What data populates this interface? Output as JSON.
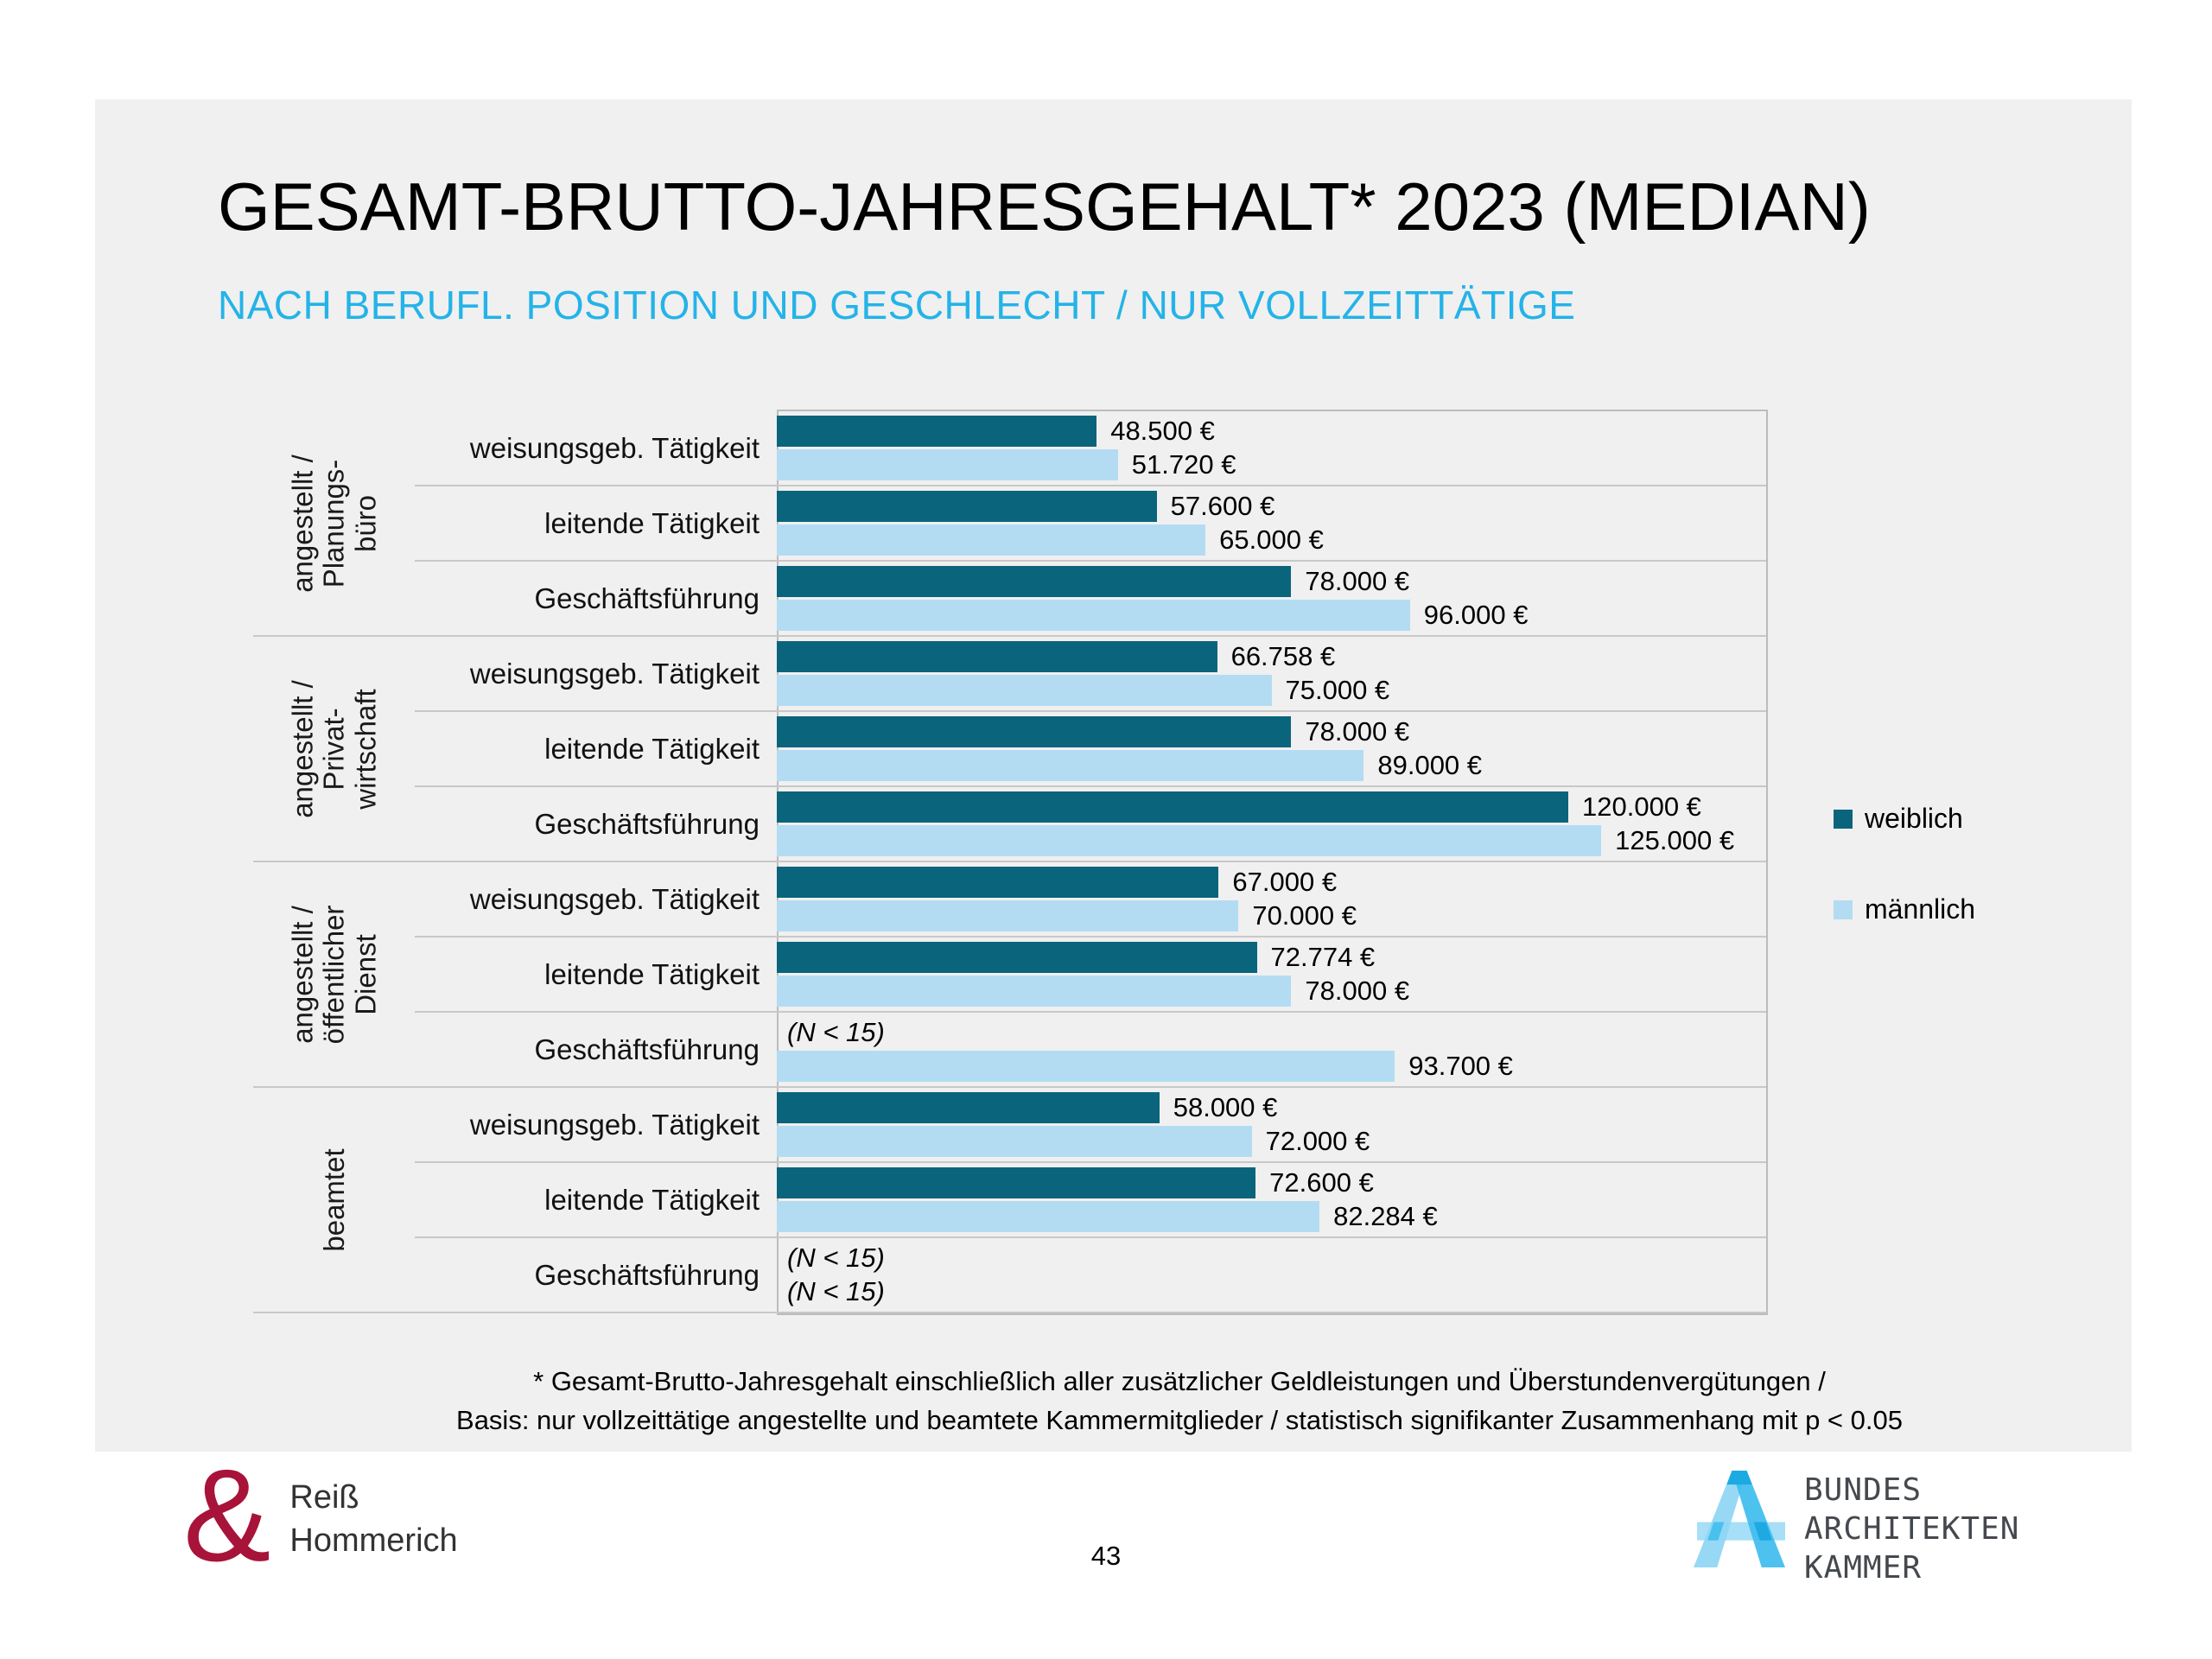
{
  "slide": {
    "title": "GESAMT-BRUTTO-JAHRESGEHALT* 2023 (MEDIAN)",
    "subtitle": "NACH BERUFL. POSITION UND GESCHLECHT / NUR VOLLZEITTÄTIGE",
    "footnote_line1": "* Gesamt-Brutto-Jahresgehalt einschließlich aller zusätzlicher Geldleistungen und Überstundenvergütungen /",
    "footnote_line2": "Basis: nur vollzeittätige angestellte und beamtete Kammermitglieder / statistisch signifikanter Zusammenhang mit p < 0.05",
    "page_number": "43"
  },
  "colors": {
    "weiblich": "#0a647c",
    "maennlich": "#b3dcf3",
    "subtitle_cyan": "#24b3e8",
    "separator": "#c8c8c8",
    "slide_background": "#f0f0f0",
    "rh_logo_red": "#a81339",
    "bak_logo_blue": "#49c1ef"
  },
  "legend": [
    {
      "label": "weiblich",
      "color_key": "weiblich"
    },
    {
      "label": "männlich",
      "color_key": "maennlich"
    }
  ],
  "chart_data": {
    "type": "bar",
    "orientation": "horizontal",
    "unit": "€",
    "xlim": [
      0,
      150000
    ],
    "grid": false,
    "legend_position": "right",
    "series_names": [
      "weiblich",
      "männlich"
    ],
    "na_text": "(N < 15)",
    "groups": [
      {
        "label": "angestellt / Planungsbüro",
        "label_lines": [
          "angestellt /",
          "Planungs-",
          "büro"
        ],
        "rows": [
          {
            "category": "weisungsgeb. Tätigkeit",
            "weiblich": 48500,
            "weiblich_label": "48.500 €",
            "maennlich": 51720,
            "maennlich_label": "51.720 €"
          },
          {
            "category": "leitende Tätigkeit",
            "weiblich": 57600,
            "weiblich_label": "57.600 €",
            "maennlich": 65000,
            "maennlich_label": "65.000 €"
          },
          {
            "category": "Geschäftsführung",
            "weiblich": 78000,
            "weiblich_label": "78.000 €",
            "maennlich": 96000,
            "maennlich_label": "96.000 €"
          }
        ]
      },
      {
        "label": "angestellt / Privatwirtschaft",
        "label_lines": [
          "angestellt /",
          "Privat-",
          "wirtschaft"
        ],
        "rows": [
          {
            "category": "weisungsgeb. Tätigkeit",
            "weiblich": 66758,
            "weiblich_label": "66.758 €",
            "maennlich": 75000,
            "maennlich_label": "75.000 €"
          },
          {
            "category": "leitende Tätigkeit",
            "weiblich": 78000,
            "weiblich_label": "78.000 €",
            "maennlich": 89000,
            "maennlich_label": "89.000 €"
          },
          {
            "category": "Geschäftsführung",
            "weiblich": 120000,
            "weiblich_label": "120.000 €",
            "maennlich": 125000,
            "maennlich_label": "125.000 €"
          }
        ]
      },
      {
        "label": "angestellt / öffentlicher Dienst",
        "label_lines": [
          "angestellt /",
          "öffentlicher",
          "Dienst"
        ],
        "rows": [
          {
            "category": "weisungsgeb. Tätigkeit",
            "weiblich": 67000,
            "weiblich_label": "67.000 €",
            "maennlich": 70000,
            "maennlich_label": "70.000 €"
          },
          {
            "category": "leitende Tätigkeit",
            "weiblich": 72774,
            "weiblich_label": "72.774 €",
            "maennlich": 78000,
            "maennlich_label": "78.000 €"
          },
          {
            "category": "Geschäftsführung",
            "weiblich": null,
            "weiblich_label": null,
            "maennlich": 93700,
            "maennlich_label": "93.700 €"
          }
        ]
      },
      {
        "label": "beamtet",
        "label_lines": [
          "beamtet"
        ],
        "rows": [
          {
            "category": "weisungsgeb. Tätigkeit",
            "weiblich": 58000,
            "weiblich_label": "58.000 €",
            "maennlich": 72000,
            "maennlich_label": "72.000 €"
          },
          {
            "category": "leitende Tätigkeit",
            "weiblich": 72600,
            "weiblich_label": "72.600 €",
            "maennlich": 82284,
            "maennlich_label": "82.284 €"
          },
          {
            "category": "Geschäftsführung",
            "weiblich": null,
            "weiblich_label": null,
            "maennlich": null,
            "maennlich_label": null
          }
        ]
      }
    ]
  },
  "logos": {
    "reiss_hommerich": {
      "ampersand": "&",
      "line1": "Reiß",
      "line2": "Hommerich"
    },
    "bak": {
      "line1": "BUNDES",
      "line2": "ARCHITEKTEN",
      "line3": "KAMMER"
    }
  }
}
